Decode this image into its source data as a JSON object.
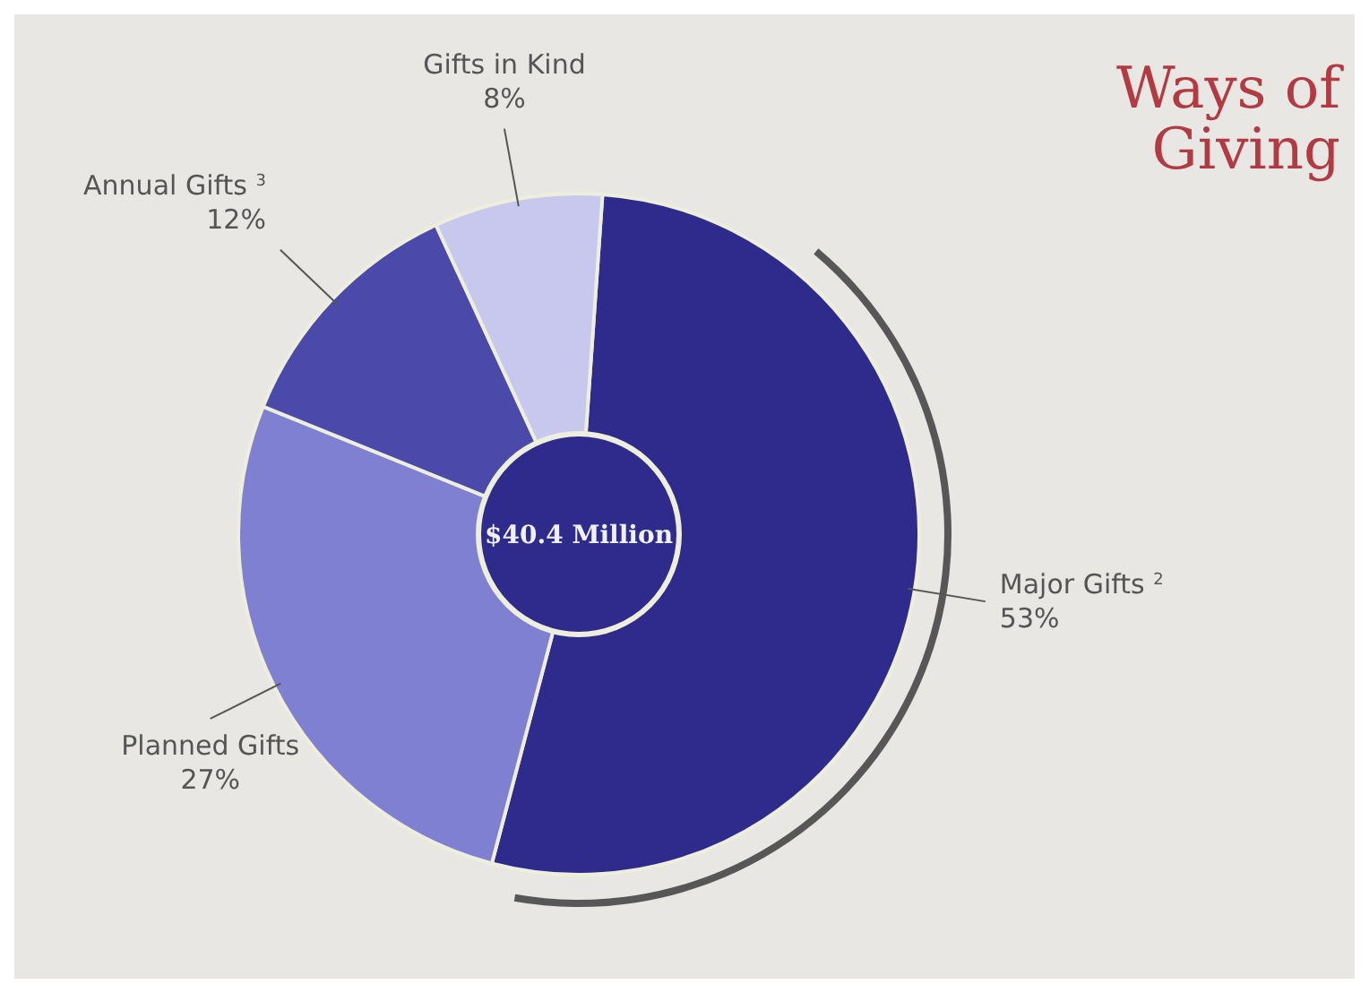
{
  "chart_data": {
    "type": "donut",
    "title": "Ways of Giving",
    "categories": [
      "Major Gifts $^{2}$",
      "Planned Gifts",
      "Annual Gifts $^{3}$",
      "Gifts in Kind"
    ],
    "values": [
      53,
      27,
      12,
      8
    ],
    "colors": [
      "#2e2b8c",
      "#8080d2",
      "#4b49aa",
      "#c8c8ee"
    ],
    "value_labels": [
      "53%",
      "27%",
      "12%",
      "8%"
    ],
    "annotations": [
      "$40.4 Million"
    ]
  }
}
